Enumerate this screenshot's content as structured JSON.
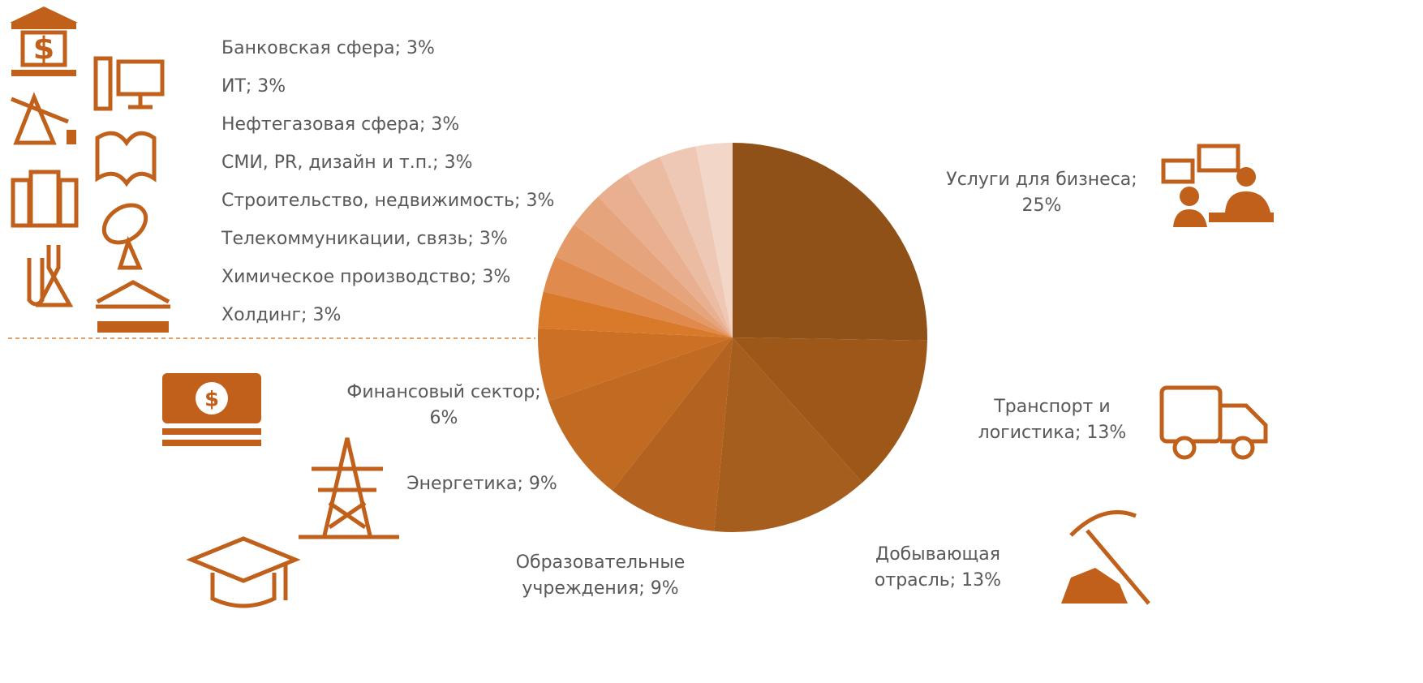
{
  "chart_data": {
    "type": "pie",
    "labels": [
      [
        "Услуги для бизнеса;",
        "25%"
      ],
      [
        "Транспорт и",
        "логистика; 13%"
      ],
      [
        "Добывающая",
        "отрасль; 13%"
      ],
      [
        "Образовательные",
        "учреждения; 9%"
      ],
      [
        "Энергетика; 9%"
      ],
      [
        "Финансовый сектор;",
        "6%"
      ],
      [
        "Холдинг; 3%"
      ],
      [
        "Химическое производство; 3%"
      ],
      [
        "Телекоммуникации, связь; 3%"
      ],
      [
        "Строительство, недвижимость; 3%"
      ],
      [
        "СМИ, PR, дизайн и т.п.; 3%"
      ],
      [
        "Нефтегазовая сфера; 3%"
      ],
      [
        "ИТ; 3%"
      ],
      [
        "Банковская сфера; 3%"
      ]
    ],
    "values": [
      25,
      13,
      13,
      9,
      9,
      6,
      3,
      3,
      3,
      3,
      3,
      3,
      3,
      3
    ],
    "colors": [
      "#8f5118",
      "#9c5719",
      "#a65e1e",
      "#b3621f",
      "#c06a22",
      "#cc7025",
      "#d97a2a",
      "#e08a4e",
      "#e49a68",
      "#e6a47c",
      "#e8b090",
      "#ebbca2",
      "#eec8b5",
      "#f2d6c8"
    ]
  }
}
